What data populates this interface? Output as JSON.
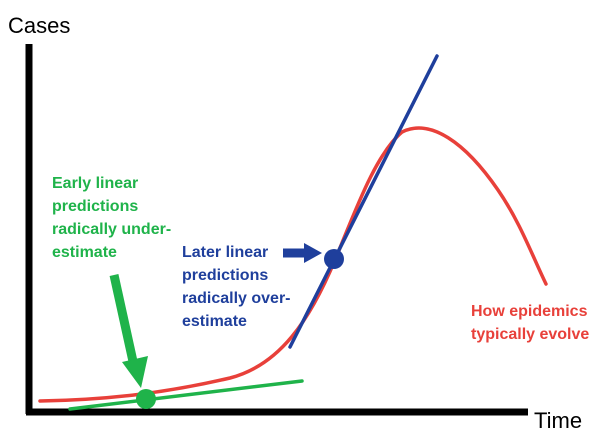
{
  "axes": {
    "y_label": "Cases",
    "x_label": "Time"
  },
  "annotations": {
    "early": {
      "lines": [
        "Early linear",
        "predictions",
        "radically under-",
        "estimate"
      ],
      "color": "#1fb34a"
    },
    "later": {
      "lines": [
        "Later linear",
        "predictions",
        "radically over-",
        "estimate"
      ],
      "color": "#1f3f9c"
    },
    "epidemic": {
      "lines": [
        "How epidemics",
        "typically evolve"
      ],
      "color": "#e8403a"
    }
  },
  "colors": {
    "axis": "#000000",
    "epidemic_curve": "#e8403a",
    "early_tangent": "#1fb34a",
    "later_tangent": "#1f3f9c"
  }
}
